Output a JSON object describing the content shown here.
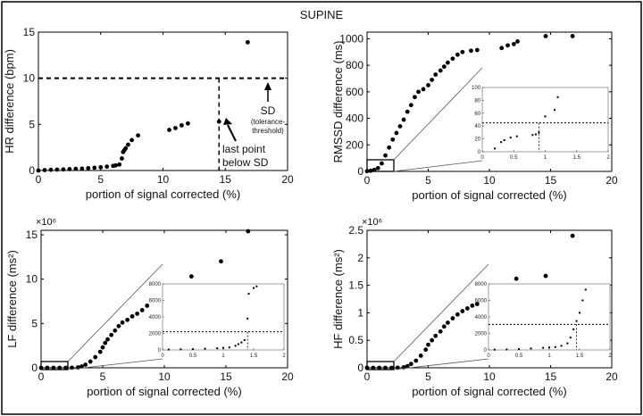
{
  "figure_title": "SUPINE",
  "chart_data": [
    {
      "type": "scatter",
      "id": "hr",
      "ylabel": "HR difference (bpm)",
      "xlabel": "portion of signal corrected (%)",
      "xlim": [
        0,
        20
      ],
      "ylim": [
        0,
        15
      ],
      "xticks": [
        0,
        5,
        10,
        15,
        20
      ],
      "yticks": [
        0,
        5,
        10,
        15
      ],
      "threshold_y": 10,
      "vline_x": 14.5,
      "points": [
        [
          0,
          0
        ],
        [
          0.5,
          0.05
        ],
        [
          1,
          0.08
        ],
        [
          1.5,
          0.1
        ],
        [
          2,
          0.12
        ],
        [
          2.5,
          0.15
        ],
        [
          3,
          0.18
        ],
        [
          3.5,
          0.2
        ],
        [
          4,
          0.25
        ],
        [
          4.5,
          0.3
        ],
        [
          5,
          0.35
        ],
        [
          5.5,
          0.42
        ],
        [
          6,
          0.5
        ],
        [
          6.2,
          0.55
        ],
        [
          6.5,
          0.65
        ],
        [
          6.7,
          1.3
        ],
        [
          6.8,
          2.0
        ],
        [
          6.9,
          2.2
        ],
        [
          7,
          2.4
        ],
        [
          7.2,
          2.8
        ],
        [
          7.5,
          3.3
        ],
        [
          8,
          3.8
        ],
        [
          10.5,
          4.4
        ],
        [
          11,
          4.6
        ],
        [
          11.5,
          4.9
        ],
        [
          12,
          5.1
        ],
        [
          14.5,
          5.3
        ],
        [
          16.8,
          13.9
        ]
      ],
      "annotations": {
        "sd_label": "SD",
        "sd_sub1": "(tolerance-",
        "sd_sub2": "threshold)",
        "last_line1": "last point",
        "last_line2": "below SD"
      }
    },
    {
      "type": "scatter",
      "id": "rmssd",
      "ylabel": "RMSSD difference (ms)",
      "xlabel": "portion of signal corrected (%)",
      "xlim": [
        0,
        20
      ],
      "ylim": [
        0,
        1050
      ],
      "xticks": [
        0,
        5,
        10,
        15,
        20
      ],
      "yticks": [
        0,
        200,
        400,
        600,
        800,
        1000
      ],
      "points": [
        [
          0,
          2
        ],
        [
          0.3,
          5
        ],
        [
          0.6,
          12
        ],
        [
          0.9,
          25
        ],
        [
          1.2,
          60
        ],
        [
          1.5,
          120
        ],
        [
          1.8,
          180
        ],
        [
          2.1,
          240
        ],
        [
          2.4,
          290
        ],
        [
          2.7,
          340
        ],
        [
          3,
          390
        ],
        [
          3.3,
          450
        ],
        [
          3.6,
          500
        ],
        [
          3.9,
          560
        ],
        [
          4.2,
          600
        ],
        [
          4.6,
          620
        ],
        [
          5,
          650
        ],
        [
          5.3,
          690
        ],
        [
          5.6,
          730
        ],
        [
          6,
          760
        ],
        [
          6.3,
          790
        ],
        [
          6.6,
          820
        ],
        [
          7,
          850
        ],
        [
          7.4,
          880
        ],
        [
          7.8,
          900
        ],
        [
          8.5,
          910
        ],
        [
          9,
          915
        ],
        [
          11,
          930
        ],
        [
          11.5,
          950
        ],
        [
          12,
          960
        ],
        [
          12.3,
          980
        ],
        [
          14.6,
          1020
        ],
        [
          16.8,
          1020
        ]
      ],
      "inset": {
        "xlim": [
          0,
          2
        ],
        "ylim": [
          0,
          100
        ],
        "xticks": [
          0,
          0.5,
          1,
          1.5,
          2
        ],
        "yticks": [
          0,
          20,
          40,
          60,
          80,
          100
        ],
        "threshold_y": 45,
        "vline_x": 0.9,
        "points": [
          [
            0.2,
            5
          ],
          [
            0.3,
            15
          ],
          [
            0.35,
            18
          ],
          [
            0.45,
            22
          ],
          [
            0.55,
            24
          ],
          [
            0.8,
            26
          ],
          [
            0.85,
            27
          ],
          [
            0.9,
            30
          ],
          [
            1.0,
            55
          ],
          [
            1.15,
            65
          ],
          [
            1.2,
            85
          ]
        ]
      }
    },
    {
      "type": "scatter",
      "id": "lf",
      "ylabel": "LF difference (ms²)",
      "xlabel": "portion of signal corrected (%)",
      "xlim": [
        0,
        20
      ],
      "ylim": [
        0,
        15.5
      ],
      "xticks": [
        0,
        5,
        10,
        15,
        20
      ],
      "yticks": [
        0,
        5,
        10,
        15
      ],
      "multiplier": "×10⁶",
      "points": [
        [
          0,
          0
        ],
        [
          0.5,
          0
        ],
        [
          1,
          0
        ],
        [
          1.5,
          0
        ],
        [
          2,
          0
        ],
        [
          2.5,
          0.01
        ],
        [
          3,
          0.05
        ],
        [
          3.3,
          0.15
        ],
        [
          3.6,
          0.35
        ],
        [
          4,
          0.7
        ],
        [
          4.4,
          1.2
        ],
        [
          4.8,
          1.8
        ],
        [
          5,
          2.3
        ],
        [
          5.2,
          2.8
        ],
        [
          5.4,
          3.2
        ],
        [
          5.7,
          3.7
        ],
        [
          6,
          4.2
        ],
        [
          6.3,
          4.7
        ],
        [
          6.6,
          5.1
        ],
        [
          7,
          5.4
        ],
        [
          7.4,
          5.8
        ],
        [
          7.8,
          6.1
        ],
        [
          8.2,
          6.5
        ],
        [
          8.6,
          7.0
        ],
        [
          12.2,
          10.3
        ],
        [
          14.6,
          12.0
        ],
        [
          16.8,
          15.4
        ]
      ],
      "inset": {
        "xlim": [
          0,
          2
        ],
        "ylim": [
          0,
          8000
        ],
        "xticks": [
          0,
          0.5,
          1,
          1.5,
          2
        ],
        "yticks": [
          0,
          2000,
          4000,
          6000,
          8000
        ],
        "threshold_y": 2200,
        "vline_x": 1.4,
        "points": [
          [
            0.1,
            50
          ],
          [
            0.3,
            80
          ],
          [
            0.5,
            100
          ],
          [
            0.7,
            150
          ],
          [
            0.9,
            200
          ],
          [
            1.0,
            250
          ],
          [
            1.1,
            300
          ],
          [
            1.2,
            500
          ],
          [
            1.25,
            700
          ],
          [
            1.3,
            900
          ],
          [
            1.35,
            1200
          ],
          [
            1.4,
            3800
          ],
          [
            1.42,
            6800
          ],
          [
            1.5,
            7500
          ],
          [
            1.55,
            7700
          ]
        ]
      }
    },
    {
      "type": "scatter",
      "id": "hf",
      "ylabel": "HF difference (ms²)",
      "xlabel": "portion of signal corrected (%)",
      "xlim": [
        0,
        20
      ],
      "ylim": [
        0,
        2.5
      ],
      "xticks": [
        0,
        5,
        10,
        15,
        20
      ],
      "yticks": [
        0,
        0.5,
        1,
        1.5,
        2,
        2.5
      ],
      "multiplier": "×10⁶",
      "points": [
        [
          0,
          0
        ],
        [
          0.5,
          0
        ],
        [
          1,
          0
        ],
        [
          1.5,
          0
        ],
        [
          2,
          0
        ],
        [
          2.5,
          0.002
        ],
        [
          3,
          0.01
        ],
        [
          3.3,
          0.03
        ],
        [
          3.6,
          0.07
        ],
        [
          4,
          0.13
        ],
        [
          4.4,
          0.22
        ],
        [
          4.8,
          0.33
        ],
        [
          5,
          0.42
        ],
        [
          5.3,
          0.5
        ],
        [
          5.6,
          0.58
        ],
        [
          6,
          0.66
        ],
        [
          6.3,
          0.75
        ],
        [
          6.6,
          0.82
        ],
        [
          7,
          0.9
        ],
        [
          7.4,
          0.97
        ],
        [
          7.8,
          1.03
        ],
        [
          8.2,
          1.08
        ],
        [
          8.6,
          1.13
        ],
        [
          9,
          1.16
        ],
        [
          12.2,
          1.62
        ],
        [
          14.6,
          1.67
        ],
        [
          16.8,
          2.4
        ]
      ],
      "inset": {
        "xlim": [
          0,
          2
        ],
        "ylim": [
          0,
          8000
        ],
        "xticks": [
          0,
          0.5,
          1,
          1.5,
          2
        ],
        "yticks": [
          0,
          2000,
          4000,
          6000,
          8000
        ],
        "threshold_y": 3100,
        "vline_x": 1.45,
        "points": [
          [
            0.1,
            40
          ],
          [
            0.3,
            60
          ],
          [
            0.5,
            100
          ],
          [
            0.7,
            180
          ],
          [
            0.9,
            250
          ],
          [
            1.0,
            300
          ],
          [
            1.1,
            350
          ],
          [
            1.2,
            500
          ],
          [
            1.3,
            800
          ],
          [
            1.35,
            1500
          ],
          [
            1.4,
            2500
          ],
          [
            1.45,
            3500
          ],
          [
            1.5,
            4500
          ],
          [
            1.55,
            6000
          ],
          [
            1.6,
            7300
          ]
        ]
      }
    }
  ]
}
